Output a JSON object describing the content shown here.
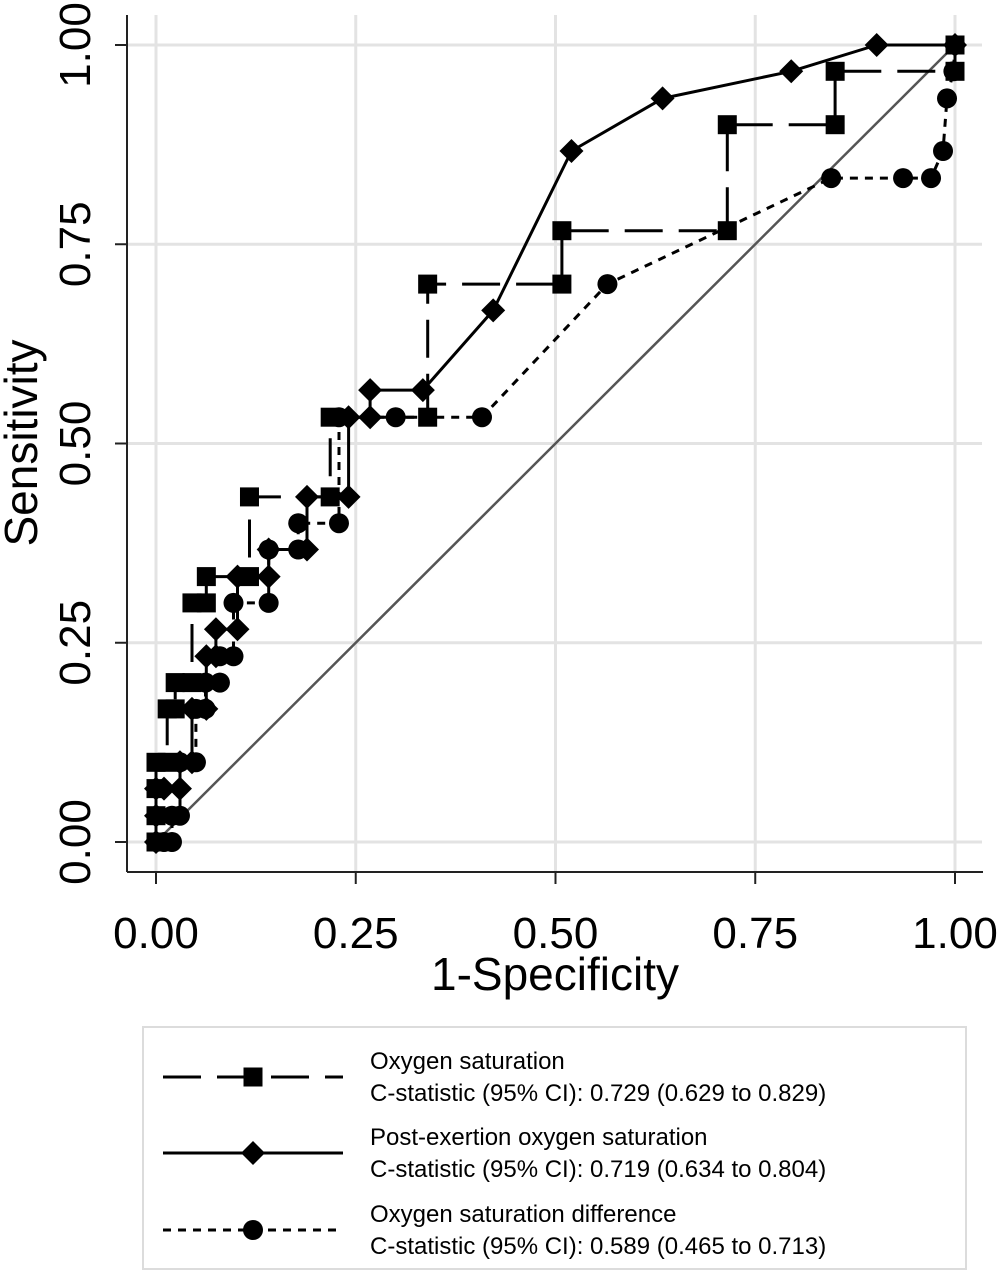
{
  "chart_data": {
    "type": "line",
    "title": "",
    "xlabel": "1-Specificity",
    "ylabel": "Sensitivity",
    "xlim": [
      0,
      1
    ],
    "ylim": [
      0,
      1
    ],
    "x_ticks": [
      "0.00",
      "0.25",
      "0.50",
      "0.75",
      "1.00"
    ],
    "y_ticks": [
      "0.00",
      "0.25",
      "0.50",
      "0.75",
      "1.00"
    ],
    "grid": true,
    "reference_line": true,
    "legend_position": "bottom",
    "series": [
      {
        "name": "Oxygen saturation",
        "stat": "C-statistic (95% CI): 0.729 (0.629 to 0.829)",
        "line_style": "long-dash",
        "marker": "square",
        "color": "#000000",
        "points": [
          [
            0.0,
            0.0
          ],
          [
            0.0,
            0.033
          ],
          [
            0.0,
            0.067
          ],
          [
            0.0,
            0.1
          ],
          [
            0.014,
            0.1
          ],
          [
            0.014,
            0.167
          ],
          [
            0.024,
            0.167
          ],
          [
            0.024,
            0.2
          ],
          [
            0.045,
            0.2
          ],
          [
            0.045,
            0.3
          ],
          [
            0.063,
            0.3
          ],
          [
            0.063,
            0.333
          ],
          [
            0.117,
            0.333
          ],
          [
            0.117,
            0.433
          ],
          [
            0.218,
            0.433
          ],
          [
            0.218,
            0.533
          ],
          [
            0.34,
            0.533
          ],
          [
            0.34,
            0.7
          ],
          [
            0.508,
            0.7
          ],
          [
            0.508,
            0.767
          ],
          [
            0.715,
            0.767
          ],
          [
            0.715,
            0.9
          ],
          [
            0.85,
            0.9
          ],
          [
            0.85,
            0.967
          ],
          [
            1.0,
            0.967
          ],
          [
            1.0,
            1.0
          ]
        ]
      },
      {
        "name": "Post-exertion oxygen saturation",
        "stat": "C-statistic (95% CI): 0.719 (0.634 to 0.804)",
        "line_style": "solid",
        "marker": "diamond",
        "color": "#000000",
        "points": [
          [
            0.0,
            0.0
          ],
          [
            0.0,
            0.033
          ],
          [
            0.0,
            0.067
          ],
          [
            0.01,
            0.067
          ],
          [
            0.03,
            0.067
          ],
          [
            0.03,
            0.1
          ],
          [
            0.045,
            0.1
          ],
          [
            0.045,
            0.167
          ],
          [
            0.063,
            0.167
          ],
          [
            0.063,
            0.233
          ],
          [
            0.075,
            0.233
          ],
          [
            0.075,
            0.267
          ],
          [
            0.102,
            0.267
          ],
          [
            0.102,
            0.333
          ],
          [
            0.141,
            0.333
          ],
          [
            0.141,
            0.367
          ],
          [
            0.189,
            0.367
          ],
          [
            0.189,
            0.433
          ],
          [
            0.241,
            0.433
          ],
          [
            0.241,
            0.533
          ],
          [
            0.268,
            0.533
          ],
          [
            0.268,
            0.567
          ],
          [
            0.334,
            0.567
          ],
          [
            0.422,
            0.667
          ],
          [
            0.52,
            0.867
          ],
          [
            0.634,
            0.933
          ],
          [
            0.795,
            0.967
          ],
          [
            0.902,
            1.0
          ],
          [
            1.0,
            1.0
          ]
        ]
      },
      {
        "name": "Oxygen saturation difference",
        "stat": "C-statistic (95% CI): 0.589 (0.465 to 0.713)",
        "line_style": "short-dash",
        "marker": "circle",
        "color": "#000000",
        "points": [
          [
            0.0,
            0.0
          ],
          [
            0.01,
            0.0
          ],
          [
            0.02,
            0.0
          ],
          [
            0.02,
            0.033
          ],
          [
            0.03,
            0.033
          ],
          [
            0.03,
            0.1
          ],
          [
            0.05,
            0.1
          ],
          [
            0.05,
            0.167
          ],
          [
            0.062,
            0.167
          ],
          [
            0.062,
            0.2
          ],
          [
            0.08,
            0.2
          ],
          [
            0.08,
            0.233
          ],
          [
            0.097,
            0.233
          ],
          [
            0.097,
            0.3
          ],
          [
            0.141,
            0.3
          ],
          [
            0.141,
            0.367
          ],
          [
            0.178,
            0.367
          ],
          [
            0.178,
            0.4
          ],
          [
            0.229,
            0.4
          ],
          [
            0.229,
            0.533
          ],
          [
            0.3,
            0.533
          ],
          [
            0.408,
            0.533
          ],
          [
            0.565,
            0.7
          ],
          [
            0.845,
            0.833
          ],
          [
            0.935,
            0.833
          ],
          [
            0.97,
            0.833
          ],
          [
            0.985,
            0.867
          ],
          [
            0.99,
            0.933
          ],
          [
            0.998,
            0.967
          ],
          [
            1.0,
            1.0
          ]
        ]
      }
    ]
  }
}
